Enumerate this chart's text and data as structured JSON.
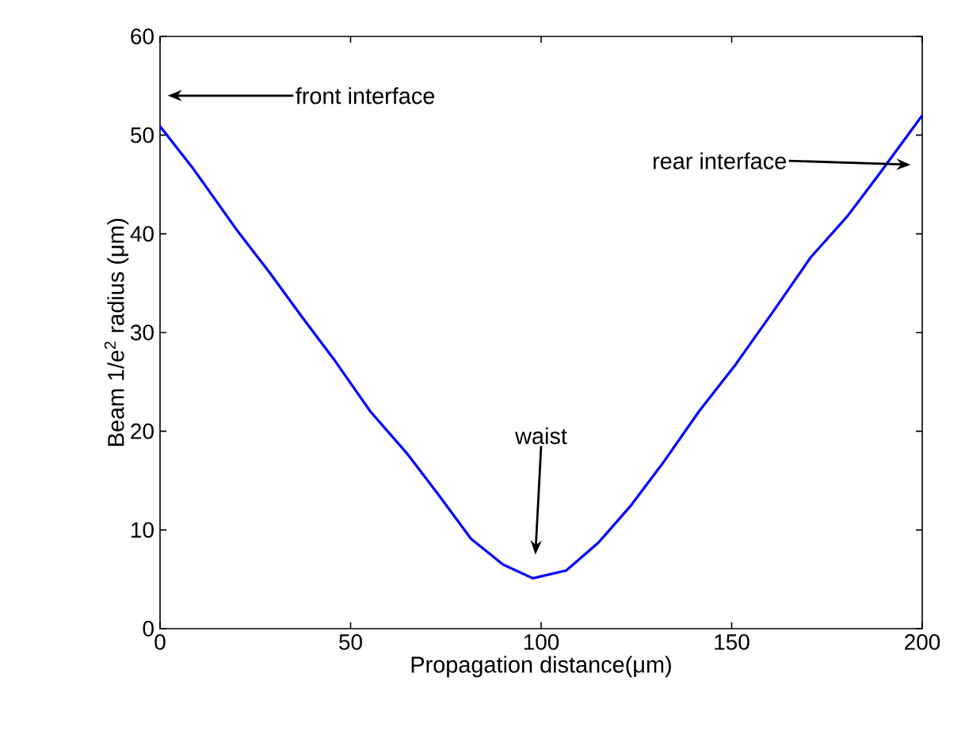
{
  "chart_data": {
    "type": "line",
    "xlabel": "Propagation distance(μm)",
    "ylabel": "Beam 1/e$^{2}$ radius (μm)",
    "x": [
      0,
      8.7,
      20.5,
      28.9,
      37.2,
      45.6,
      55.2,
      64.9,
      73.2,
      81.6,
      90,
      97.8,
      106.6,
      115,
      123.4,
      131.8,
      141.4,
      151.1,
      161,
      170.7,
      180.4,
      188.8,
      200
    ],
    "series": [
      {
        "color": "#0000ff",
        "values": [
          50.9,
          46.6,
          40.2,
          36.0,
          31.6,
          27.3,
          22.0,
          17.7,
          13.5,
          9.1,
          6.5,
          5.1,
          5.9,
          8.7,
          12.4,
          16.7,
          22.0,
          26.8,
          32.2,
          37.6,
          41.8,
          46.1,
          52.0
        ]
      }
    ],
    "xlim": [
      0,
      200
    ],
    "ylim": [
      0,
      60
    ],
    "xticks": [
      0,
      50,
      100,
      150,
      200
    ],
    "yticks": [
      0,
      10,
      20,
      30,
      40,
      50,
      60
    ],
    "grid": false,
    "marker": "none",
    "line_style": "solid",
    "annotations": [
      "front interface",
      "rear interface",
      "waist"
    ]
  }
}
